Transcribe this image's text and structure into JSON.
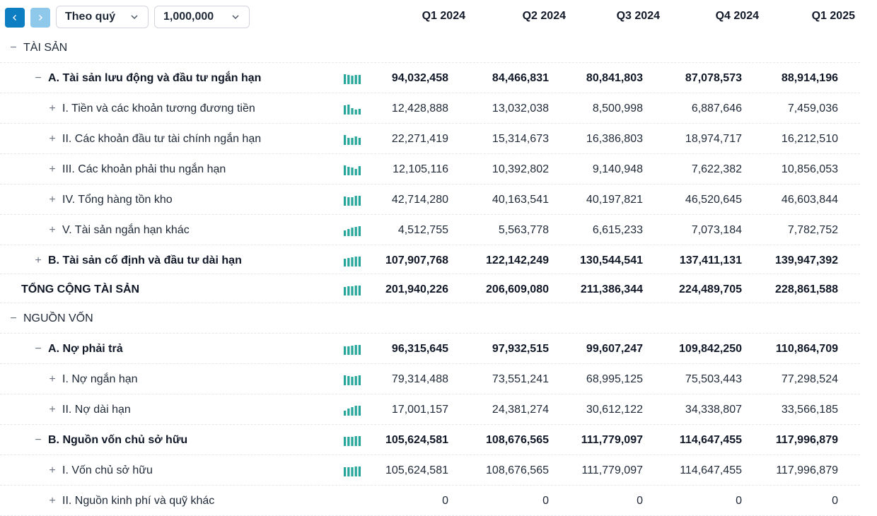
{
  "toolbar": {
    "prev_icon": "chevron-left-icon",
    "next_icon": "chevron-right-icon",
    "period_select": "Theo quý",
    "unit_select": "1,000,000"
  },
  "columns": [
    "Q1 2024",
    "Q2 2024",
    "Q3 2024",
    "Q4 2024",
    "Q1 2025"
  ],
  "colors": {
    "accent": "#0e7ec2",
    "spark": "#26a69a"
  },
  "rows": [
    {
      "label": "TÀI SẢN",
      "toggle": "−",
      "level": 0,
      "bold": false,
      "values": [
        "",
        "",
        "",
        "",
        ""
      ]
    },
    {
      "label": "A. Tài sản lưu động và đầu tư ngắn hạn",
      "toggle": "−",
      "level": 1,
      "bold": true,
      "values": [
        "94,032,458",
        "84,466,831",
        "80,841,803",
        "87,078,573",
        "88,914,196"
      ]
    },
    {
      "label": "I. Tiền và các khoản tương đương tiền",
      "toggle": "+",
      "level": 2,
      "bold": false,
      "values": [
        "12,428,888",
        "13,032,038",
        "8,500,998",
        "6,887,646",
        "7,459,036"
      ]
    },
    {
      "label": "II. Các khoản đầu tư tài chính ngắn hạn",
      "toggle": "+",
      "level": 2,
      "bold": false,
      "values": [
        "22,271,419",
        "15,314,673",
        "16,386,803",
        "18,974,717",
        "16,212,510"
      ]
    },
    {
      "label": "III. Các khoản phải thu ngắn hạn",
      "toggle": "+",
      "level": 2,
      "bold": false,
      "values": [
        "12,105,116",
        "10,392,802",
        "9,140,948",
        "7,622,382",
        "10,856,053"
      ]
    },
    {
      "label": "IV. Tổng hàng tồn kho",
      "toggle": "+",
      "level": 2,
      "bold": false,
      "values": [
        "42,714,280",
        "40,163,541",
        "40,197,821",
        "46,520,645",
        "46,603,844"
      ]
    },
    {
      "label": "V. Tài sản ngắn hạn khác",
      "toggle": "+",
      "level": 2,
      "bold": false,
      "values": [
        "4,512,755",
        "5,563,778",
        "6,615,233",
        "7,073,184",
        "7,782,752"
      ]
    },
    {
      "label": "B. Tài sản cố định và đầu tư dài hạn",
      "toggle": "+",
      "level": 1,
      "bold": true,
      "values": [
        "107,907,768",
        "122,142,249",
        "130,544,541",
        "137,411,131",
        "139,947,392"
      ]
    },
    {
      "label": "TỔNG CỘNG TÀI SẢN",
      "toggle": "",
      "level": -1,
      "bold": true,
      "values": [
        "201,940,226",
        "206,609,080",
        "211,386,344",
        "224,489,705",
        "228,861,588"
      ]
    },
    {
      "label": "NGUỒN VỐN",
      "toggle": "−",
      "level": 0,
      "bold": false,
      "values": [
        "",
        "",
        "",
        "",
        ""
      ]
    },
    {
      "label": "A. Nợ phải trả",
      "toggle": "−",
      "level": 1,
      "bold": true,
      "values": [
        "96,315,645",
        "97,932,515",
        "99,607,247",
        "109,842,250",
        "110,864,709"
      ]
    },
    {
      "label": "I. Nợ ngắn hạn",
      "toggle": "+",
      "level": 2,
      "bold": false,
      "values": [
        "79,314,488",
        "73,551,241",
        "68,995,125",
        "75,503,443",
        "77,298,524"
      ]
    },
    {
      "label": "II. Nợ dài hạn",
      "toggle": "+",
      "level": 2,
      "bold": false,
      "values": [
        "17,001,157",
        "24,381,274",
        "30,612,122",
        "34,338,807",
        "33,566,185"
      ]
    },
    {
      "label": "B. Nguồn vốn chủ sở hữu",
      "toggle": "−",
      "level": 1,
      "bold": true,
      "values": [
        "105,624,581",
        "108,676,565",
        "111,779,097",
        "114,647,455",
        "117,996,879"
      ]
    },
    {
      "label": "I. Vốn chủ sở hữu",
      "toggle": "+",
      "level": 2,
      "bold": false,
      "values": [
        "105,624,581",
        "108,676,565",
        "111,779,097",
        "114,647,455",
        "117,996,879"
      ]
    },
    {
      "label": "II. Nguồn kinh phí và quỹ khác",
      "toggle": "+",
      "level": 2,
      "bold": false,
      "values": [
        "0",
        "0",
        "0",
        "0",
        "0"
      ]
    }
  ]
}
